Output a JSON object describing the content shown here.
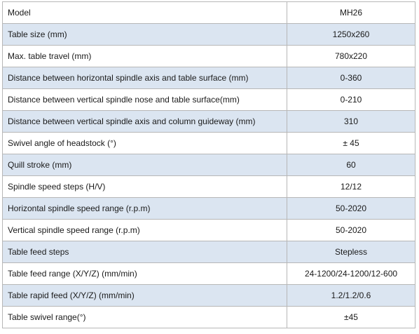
{
  "table": {
    "alt_row_color": "#dbe5f1",
    "rows": [
      {
        "label": "Model",
        "value": "MH26"
      },
      {
        "label": "Table size (mm)",
        "value": "1250x260"
      },
      {
        "label": "Max. table travel (mm)",
        "value": "780x220"
      },
      {
        "label": "Distance between horizontal spindle axis and table surface (mm)",
        "value": "0-360"
      },
      {
        "label": "Distance between vertical spindle nose and table surface(mm)",
        "value": "0-210"
      },
      {
        "label": "Distance between vertical spindle axis and column guideway (mm)",
        "value": "310"
      },
      {
        "label": "Swivel angle of headstock (°)",
        "value": "± 45"
      },
      {
        "label": "Quill stroke (mm)",
        "value": "60"
      },
      {
        "label": "Spindle speed steps (H/V)",
        "value": "12/12"
      },
      {
        "label": "Horizontal spindle speed range (r.p.m)",
        "value": "50-2020"
      },
      {
        "label": "Vertical spindle speed range (r.p.m)",
        "value": "50-2020"
      },
      {
        "label": "Table feed steps",
        "value": "Stepless"
      },
      {
        "label": "Table feed range (X/Y/Z) (mm/min)",
        "value": "24-1200/24-1200/12-600"
      },
      {
        "label": "Table rapid feed (X/Y/Z) (mm/min)",
        "value": "1.2/1.2/0.6"
      },
      {
        "label": "Table swivel range(°)",
        "value": "±45"
      }
    ]
  }
}
